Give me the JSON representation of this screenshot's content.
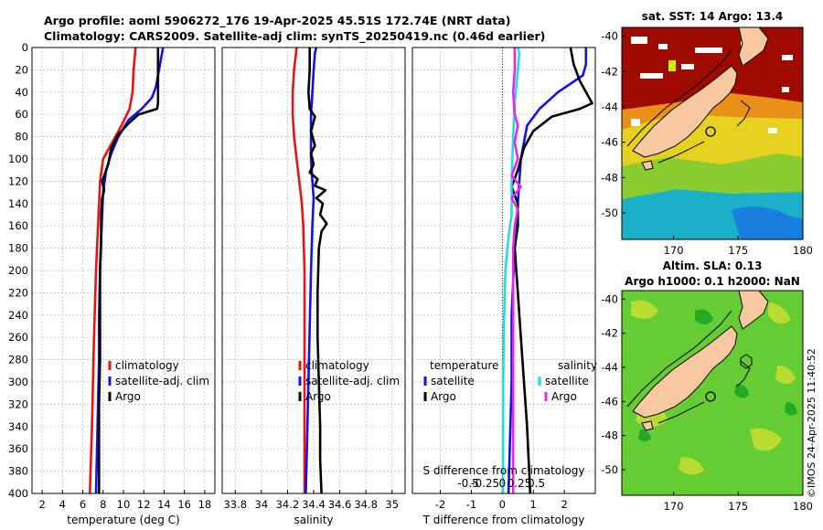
{
  "header": {
    "line1": "Argo profile: aoml 5906272_176 19-Apr-2025 45.51S 172.74E (NRT data)",
    "line2": "Climatology: CARS2009. Satellite-adj clim: synTS_20250419.nc (0.46d earlier)"
  },
  "watermark": "©IMOS 24-Apr-2025 11:40:52",
  "colors": {
    "climatology": "#ee1111",
    "satellite": "#1111ee",
    "argo": "#000000",
    "sal_satellite": "#22dddd",
    "sal_argo": "#ee22ee",
    "land": "#f8c8a0"
  },
  "chart_data": [
    {
      "id": "temperature",
      "type": "line",
      "xlabel": "temperature (deg C)",
      "ylabel": "",
      "xlim": [
        1,
        19
      ],
      "ylim": [
        0,
        400
      ],
      "x_ticks": [
        2,
        4,
        6,
        8,
        10,
        12,
        14,
        16,
        18
      ],
      "y_ticks": [
        0,
        20,
        40,
        60,
        80,
        100,
        120,
        140,
        160,
        180,
        200,
        220,
        240,
        260,
        280,
        300,
        320,
        340,
        360,
        380,
        400
      ],
      "grid": true,
      "legend_position": "lower-right",
      "series": [
        {
          "name": "climatology",
          "color": "#ee1111",
          "points": [
            [
              11.2,
              0
            ],
            [
              11.1,
              10
            ],
            [
              11.0,
              20
            ],
            [
              10.9,
              40
            ],
            [
              10.6,
              55
            ],
            [
              9.8,
              70
            ],
            [
              8.9,
              85
            ],
            [
              8.0,
              100
            ],
            [
              7.7,
              120
            ],
            [
              7.6,
              140
            ],
            [
              7.5,
              160
            ],
            [
              7.4,
              180
            ],
            [
              7.3,
              200
            ],
            [
              7.2,
              230
            ],
            [
              7.1,
              260
            ],
            [
              7.0,
              300
            ],
            [
              6.9,
              340
            ],
            [
              6.8,
              370
            ],
            [
              6.7,
              400
            ]
          ]
        },
        {
          "name": "satellite-adj. clim",
          "color": "#1111ee",
          "points": [
            [
              13.9,
              0
            ],
            [
              13.8,
              5
            ],
            [
              13.5,
              20
            ],
            [
              13.2,
              35
            ],
            [
              12.8,
              45
            ],
            [
              11.8,
              55
            ],
            [
              10.5,
              65
            ],
            [
              9.5,
              80
            ],
            [
              8.8,
              95
            ],
            [
              8.3,
              110
            ],
            [
              8.0,
              130
            ],
            [
              7.9,
              150
            ],
            [
              7.8,
              170
            ],
            [
              7.7,
              200
            ],
            [
              7.6,
              240
            ],
            [
              7.6,
              280
            ],
            [
              7.5,
              320
            ],
            [
              7.4,
              360
            ],
            [
              7.3,
              400
            ]
          ]
        },
        {
          "name": "Argo",
          "color": "#000000",
          "points": [
            [
              13.4,
              0
            ],
            [
              13.4,
              10
            ],
            [
              13.4,
              20
            ],
            [
              13.4,
              40
            ],
            [
              13.4,
              50
            ],
            [
              13.3,
              55
            ],
            [
              11.5,
              60
            ],
            [
              10.5,
              68
            ],
            [
              9.5,
              78
            ],
            [
              8.8,
              90
            ],
            [
              8.5,
              105
            ],
            [
              8.1,
              115
            ],
            [
              7.9,
              120
            ],
            [
              8.1,
              128
            ],
            [
              7.9,
              135
            ],
            [
              7.8,
              150
            ],
            [
              7.8,
              175
            ],
            [
              7.7,
              200
            ],
            [
              7.7,
              240
            ],
            [
              7.7,
              280
            ],
            [
              7.6,
              320
            ],
            [
              7.6,
              360
            ],
            [
              7.6,
              400
            ]
          ]
        }
      ]
    },
    {
      "id": "salinity",
      "type": "line",
      "xlabel": "salinity",
      "xlim": [
        33.7,
        35.1
      ],
      "ylim": [
        0,
        400
      ],
      "x_ticks": [
        33.8,
        34,
        34.2,
        34.4,
        34.6,
        34.8,
        35
      ],
      "x_tick_labels": [
        "33.8",
        "34",
        "34.2",
        "34.4",
        "34.6",
        "34.8",
        "35"
      ],
      "grid": true,
      "legend_position": "lower-right",
      "series": [
        {
          "name": "climatology",
          "color": "#ee1111",
          "points": [
            [
              34.27,
              0
            ],
            [
              34.26,
              10
            ],
            [
              34.25,
              20
            ],
            [
              34.24,
              40
            ],
            [
              34.24,
              60
            ],
            [
              34.25,
              80
            ],
            [
              34.27,
              100
            ],
            [
              34.29,
              120
            ],
            [
              34.31,
              140
            ],
            [
              34.32,
              160
            ],
            [
              34.33,
              200
            ],
            [
              34.33,
              250
            ],
            [
              34.33,
              300
            ],
            [
              34.33,
              350
            ],
            [
              34.33,
              400
            ]
          ]
        },
        {
          "name": "satellite-adj. clim",
          "color": "#1111ee",
          "points": [
            [
              34.42,
              0
            ],
            [
              34.41,
              5
            ],
            [
              34.4,
              20
            ],
            [
              34.39,
              40
            ],
            [
              34.38,
              60
            ],
            [
              34.38,
              80
            ],
            [
              34.38,
              100
            ],
            [
              34.39,
              120
            ],
            [
              34.4,
              135
            ],
            [
              34.39,
              160
            ],
            [
              34.38,
              200
            ],
            [
              34.37,
              250
            ],
            [
              34.36,
              300
            ],
            [
              34.35,
              350
            ],
            [
              34.34,
              400
            ]
          ]
        },
        {
          "name": "Argo",
          "color": "#000000",
          "points": [
            [
              34.37,
              0
            ],
            [
              34.37,
              20
            ],
            [
              34.36,
              40
            ],
            [
              34.37,
              55
            ],
            [
              34.41,
              62
            ],
            [
              34.38,
              75
            ],
            [
              34.41,
              88
            ],
            [
              34.38,
              95
            ],
            [
              34.4,
              105
            ],
            [
              34.37,
              112
            ],
            [
              34.43,
              118
            ],
            [
              34.41,
              124
            ],
            [
              34.49,
              128
            ],
            [
              34.42,
              135
            ],
            [
              34.47,
              140
            ],
            [
              34.45,
              150
            ],
            [
              34.5,
              158
            ],
            [
              34.46,
              165
            ],
            [
              34.44,
              180
            ],
            [
              34.43,
              220
            ],
            [
              34.43,
              260
            ],
            [
              34.44,
              300
            ],
            [
              34.45,
              340
            ],
            [
              34.45,
              370
            ],
            [
              34.46,
              400
            ]
          ]
        }
      ]
    },
    {
      "id": "difference",
      "type": "line",
      "xlabel": "T difference from climatology",
      "xlim": [
        -2.9,
        3.0
      ],
      "ylim": [
        0,
        400
      ],
      "x_ticks": [
        -2,
        -1,
        0,
        1,
        2
      ],
      "x_tick_labels": [
        "-2",
        "-1",
        "0",
        "1",
        "2"
      ],
      "top_axis_label": "S difference from climatology",
      "top_ticks": [
        -0.5,
        -0.25,
        0,
        0.25,
        0.5
      ],
      "top_tick_labels": [
        "-0.5",
        "-0.25",
        "0",
        "0.25",
        "0.5"
      ],
      "grid": true,
      "legend_position": "lower",
      "legend_titles": [
        "temperature",
        "salinity"
      ],
      "series": [
        {
          "name": "satellite",
          "group": "temperature",
          "color": "#1111ee",
          "points": [
            [
              2.7,
              0
            ],
            [
              2.7,
              15
            ],
            [
              2.6,
              25
            ],
            [
              1.8,
              40
            ],
            [
              1.2,
              55
            ],
            [
              0.8,
              70
            ],
            [
              0.6,
              100
            ],
            [
              0.5,
              140
            ],
            [
              0.4,
              180
            ],
            [
              0.3,
              240
            ],
            [
              0.3,
              300
            ],
            [
              0.2,
              400
            ]
          ]
        },
        {
          "name": "Argo",
          "group": "temperature",
          "color": "#000000",
          "points": [
            [
              2.2,
              0
            ],
            [
              2.3,
              15
            ],
            [
              2.5,
              30
            ],
            [
              2.8,
              45
            ],
            [
              2.9,
              50
            ],
            [
              2.5,
              55
            ],
            [
              1.6,
              62
            ],
            [
              1.0,
              75
            ],
            [
              0.7,
              90
            ],
            [
              0.5,
              110
            ],
            [
              0.3,
              125
            ],
            [
              0.5,
              140
            ],
            [
              0.5,
              160
            ],
            [
              0.4,
              180
            ],
            [
              0.5,
              220
            ],
            [
              0.6,
              260
            ],
            [
              0.7,
              300
            ],
            [
              0.8,
              340
            ],
            [
              0.9,
              400
            ]
          ]
        },
        {
          "name": "satellite",
          "group": "salinity",
          "color": "#22dddd",
          "points": [
            [
              0.5,
              0
            ],
            [
              0.55,
              5
            ],
            [
              0.5,
              20
            ],
            [
              0.4,
              50
            ],
            [
              0.35,
              80
            ],
            [
              0.3,
              120
            ],
            [
              0.3,
              150
            ],
            [
              0.2,
              170
            ],
            [
              0.1,
              200
            ],
            [
              0.05,
              250
            ],
            [
              0.03,
              300
            ],
            [
              0.02,
              400
            ]
          ]
        },
        {
          "name": "Argo",
          "group": "salinity",
          "color": "#ee22ee",
          "points": [
            [
              0.4,
              0
            ],
            [
              0.4,
              20
            ],
            [
              0.35,
              40
            ],
            [
              0.4,
              60
            ],
            [
              0.5,
              70
            ],
            [
              0.4,
              85
            ],
            [
              0.5,
              100
            ],
            [
              0.3,
              115
            ],
            [
              0.6,
              125
            ],
            [
              0.3,
              135
            ],
            [
              0.5,
              145
            ],
            [
              0.4,
              160
            ],
            [
              0.35,
              180
            ],
            [
              0.35,
              220
            ],
            [
              0.35,
              300
            ],
            [
              0.35,
              360
            ],
            [
              0.35,
              400
            ]
          ]
        }
      ]
    },
    {
      "id": "sst-map",
      "type": "heatmap",
      "title": "sat. SST: 14 Argo: 13.4",
      "xlim": [
        166,
        180
      ],
      "ylim": [
        -51.5,
        -39.5
      ],
      "x_ticks": [
        170,
        175,
        180
      ],
      "y_ticks": [
        -40,
        -42,
        -44,
        -46,
        -48,
        -50
      ],
      "marker": {
        "lon": 172.74,
        "lat": -45.51
      }
    },
    {
      "id": "sla-map",
      "type": "heatmap",
      "title_line1": "Altim. SLA: 0.13",
      "title_line2": "Argo h1000: 0.1 h2000: NaN",
      "xlim": [
        166,
        180
      ],
      "ylim": [
        -51.5,
        -39.5
      ],
      "x_ticks": [
        170,
        175,
        180
      ],
      "y_ticks": [
        -40,
        -42,
        -44,
        -46,
        -48,
        -50
      ],
      "marker": {
        "lon": 172.74,
        "lat": -45.51
      }
    }
  ]
}
